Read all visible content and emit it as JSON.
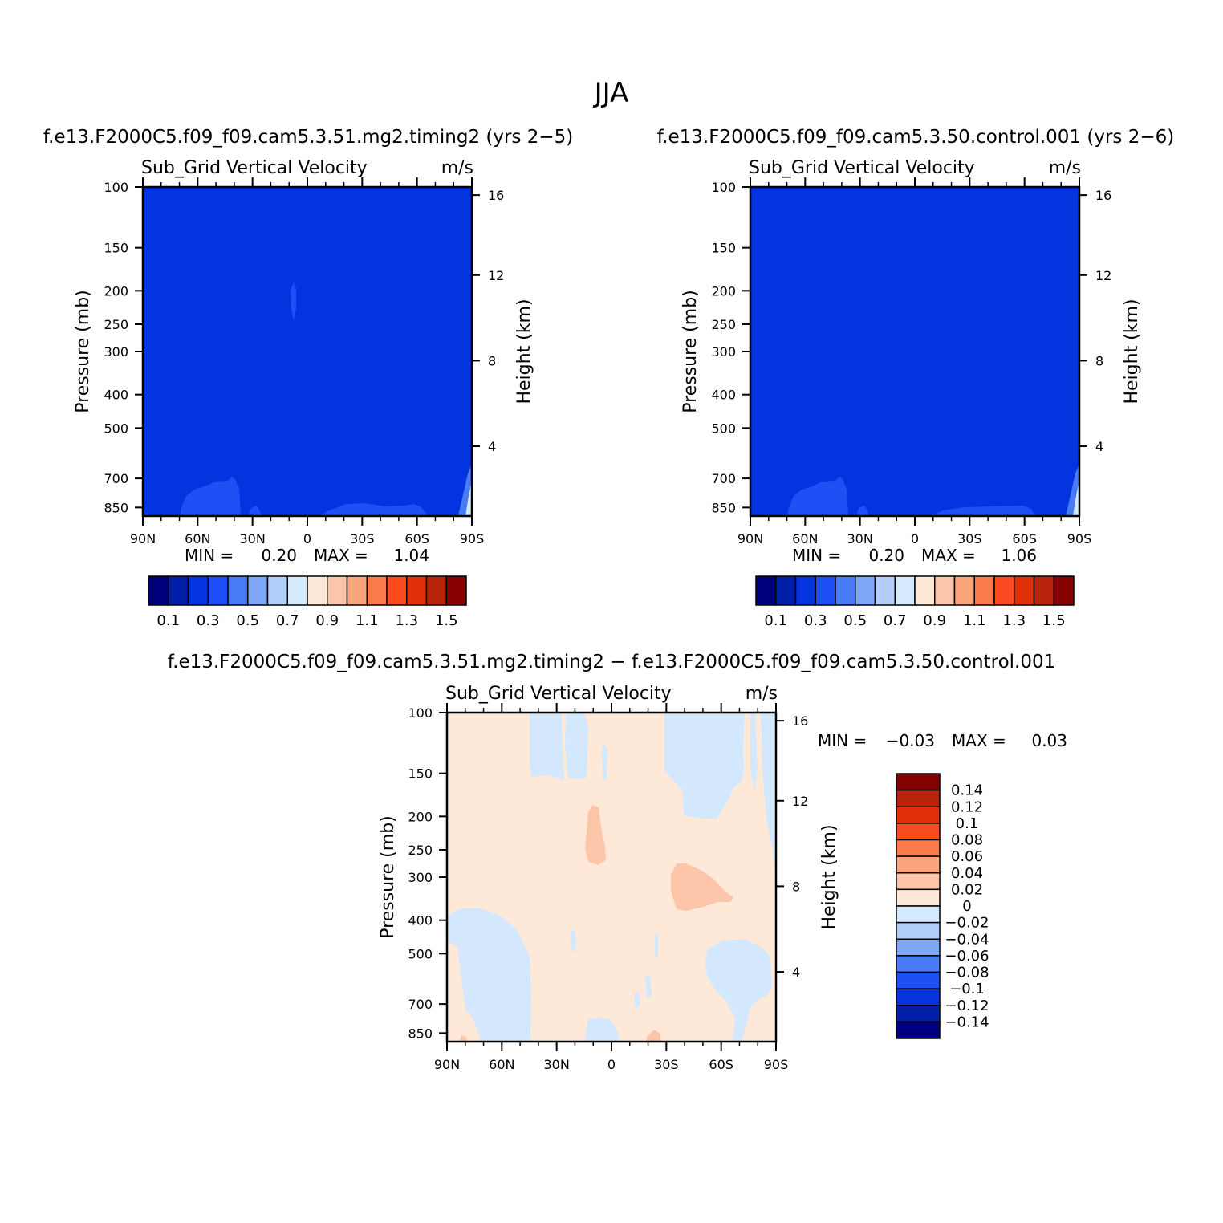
{
  "figure": {
    "title": "JJA"
  },
  "colors": {
    "abs_field": "#0433e0",
    "abs_patch": "#1f50f5",
    "diff_pos": "#fee9d8",
    "diff_pos2": "#fdc6aa",
    "diff_neg": "#d3e8fc"
  },
  "panel_top_left": {
    "case": "f.e13.F2000C5.f09_f09.cam5.3.51.mg2.timing2 (yrs 2−5)",
    "variable": "Sub_Grid Vertical Velocity",
    "units": "m/s",
    "ylabel_left": "Pressure (mb)",
    "ylabel_right": "Height (km)",
    "stats": {
      "min_label": "MIN =",
      "min": "0.20",
      "max_label": "MAX =",
      "max": "1.04"
    }
  },
  "panel_top_right": {
    "case": "f.e13.F2000C5.f09_f09.cam5.3.50.control.001 (yrs 2−6)",
    "variable": "Sub_Grid Vertical Velocity",
    "units": "m/s",
    "ylabel_left": "Pressure (mb)",
    "ylabel_right": "Height (km)",
    "stats": {
      "min_label": "MIN =",
      "min": "0.20",
      "max_label": "MAX =",
      "max": "1.06"
    }
  },
  "panel_diff": {
    "case": "f.e13.F2000C5.f09_f09.cam5.3.51.mg2.timing2 − f.e13.F2000C5.f09_f09.cam5.3.50.control.001",
    "variable": "Sub_Grid Vertical Velocity",
    "units": "m/s",
    "ylabel_left": "Pressure (mb)",
    "ylabel_right": "Height (km)",
    "stats": {
      "min_label": "MIN =",
      "min": "−0.03",
      "max_label": "MAX =",
      "max": "0.03"
    }
  },
  "chart_data": [
    {
      "type": "heatmap",
      "panel": "panel_top_left",
      "x_ticks": [
        "90N",
        "60N",
        "30N",
        "0",
        "30S",
        "60S",
        "90S"
      ],
      "y_ticks": [
        100,
        150,
        200,
        250,
        300,
        400,
        500,
        700,
        850
      ],
      "y_scale": "log",
      "ylim": [
        1000,
        100
      ],
      "height_ticks": [
        16,
        12,
        8,
        4
      ],
      "min": 0.2,
      "max": 1.04,
      "colorbar": {
        "orientation": "horizontal",
        "labels": [
          "0.1",
          "0.3",
          "0.5",
          "0.7",
          "0.9",
          "1.1",
          "1.3",
          "1.5"
        ],
        "colors": [
          "#00007f",
          "#001fa8",
          "#0433e0",
          "#1f50f5",
          "#4a7bf7",
          "#7ea6f9",
          "#b3cefb",
          "#d6eafd",
          "#fee9d8",
          "#fdc6aa",
          "#fca47c",
          "#fb7a4a",
          "#fa4b20",
          "#e03008",
          "#b8250c",
          "#860000"
        ]
      }
    },
    {
      "type": "heatmap",
      "panel": "panel_top_right",
      "x_ticks": [
        "90N",
        "60N",
        "30N",
        "0",
        "30S",
        "60S",
        "90S"
      ],
      "y_ticks": [
        100,
        150,
        200,
        250,
        300,
        400,
        500,
        700,
        850
      ],
      "y_scale": "log",
      "ylim": [
        1000,
        100
      ],
      "height_ticks": [
        16,
        12,
        8,
        4
      ],
      "min": 0.2,
      "max": 1.06,
      "colorbar": {
        "orientation": "horizontal",
        "labels": [
          "0.1",
          "0.3",
          "0.5",
          "0.7",
          "0.9",
          "1.1",
          "1.3",
          "1.5"
        ],
        "colors": [
          "#00007f",
          "#001fa8",
          "#0433e0",
          "#1f50f5",
          "#4a7bf7",
          "#7ea6f9",
          "#b3cefb",
          "#d6eafd",
          "#fee9d8",
          "#fdc6aa",
          "#fca47c",
          "#fb7a4a",
          "#fa4b20",
          "#e03008",
          "#b8250c",
          "#860000"
        ]
      }
    },
    {
      "type": "heatmap",
      "panel": "panel_diff",
      "x_ticks": [
        "90N",
        "60N",
        "30N",
        "0",
        "30S",
        "60S",
        "90S"
      ],
      "y_ticks": [
        100,
        150,
        200,
        250,
        300,
        400,
        500,
        700,
        850
      ],
      "y_scale": "log",
      "ylim": [
        1000,
        100
      ],
      "height_ticks": [
        16,
        12,
        8,
        4
      ],
      "min": -0.03,
      "max": 0.03,
      "colorbar": {
        "orientation": "vertical",
        "labels": [
          "0.14",
          "0.12",
          "0.1",
          "0.08",
          "0.06",
          "0.04",
          "0.02",
          "0",
          "−0.02",
          "−0.04",
          "−0.06",
          "−0.08",
          "−0.1",
          "−0.12",
          "−0.14"
        ],
        "colors": [
          "#860000",
          "#b8250c",
          "#e03008",
          "#fa4b20",
          "#fb7a4a",
          "#fca47c",
          "#fdc6aa",
          "#fee9d8",
          "#d6eafd",
          "#b3cefb",
          "#7ea6f9",
          "#4a7bf7",
          "#1f50f5",
          "#0433e0",
          "#001fa8",
          "#00007f"
        ]
      }
    }
  ]
}
